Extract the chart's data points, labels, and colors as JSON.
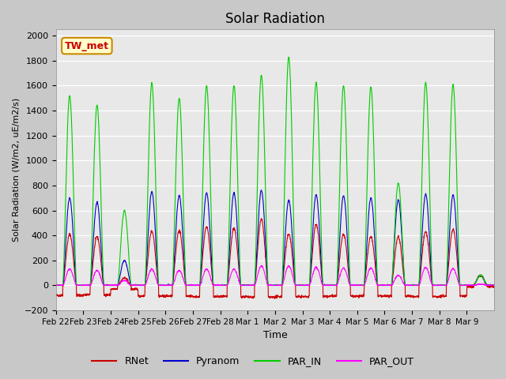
{
  "title": "Solar Radiation",
  "ylabel": "Solar Radiation (W/m2, uE/m2/s)",
  "xlabel": "Time",
  "ylim": [
    -200,
    2050
  ],
  "yticks": [
    -200,
    0,
    200,
    400,
    600,
    800,
    1000,
    1200,
    1400,
    1600,
    1800,
    2000
  ],
  "xtick_labels": [
    "Feb 22",
    "Feb 23",
    "Feb 24",
    "Feb 25",
    "Feb 26",
    "Feb 27",
    "Feb 28",
    "Mar 1",
    "Mar 2",
    "Mar 3",
    "Mar 4",
    "Mar 5",
    "Mar 6",
    "Mar 7",
    "Mar 8",
    "Mar 9"
  ],
  "xtick_positions": [
    0,
    1,
    2,
    3,
    4,
    5,
    6,
    7,
    8,
    9,
    10,
    11,
    12,
    13,
    14,
    15
  ],
  "colors": {
    "RNet": "#cc0000",
    "Pyranom": "#0000cc",
    "PAR_IN": "#00cc00",
    "PAR_OUT": "#ff00ff"
  },
  "legend_label": "TW_met",
  "n_days": 16,
  "day_peaks": {
    "RNet": [
      410,
      390,
      60,
      435,
      440,
      470,
      460,
      530,
      410,
      490,
      410,
      390,
      390,
      430,
      450,
      80
    ],
    "Pyranom": [
      700,
      665,
      200,
      750,
      720,
      740,
      740,
      760,
      680,
      725,
      720,
      700,
      685,
      730,
      725,
      80
    ],
    "PAR_IN": [
      1520,
      1445,
      600,
      1620,
      1500,
      1600,
      1600,
      1685,
      1830,
      1625,
      1600,
      1590,
      820,
      1625,
      1610,
      80
    ],
    "PAR_OUT": [
      130,
      120,
      40,
      130,
      120,
      130,
      130,
      155,
      155,
      145,
      140,
      140,
      80,
      145,
      135,
      10
    ]
  },
  "RNet_negative": [
    -80,
    -75,
    -30,
    -85,
    -85,
    -90,
    -90,
    -95,
    -90,
    -90,
    -85,
    -85,
    -85,
    -90,
    -85,
    -10
  ]
}
